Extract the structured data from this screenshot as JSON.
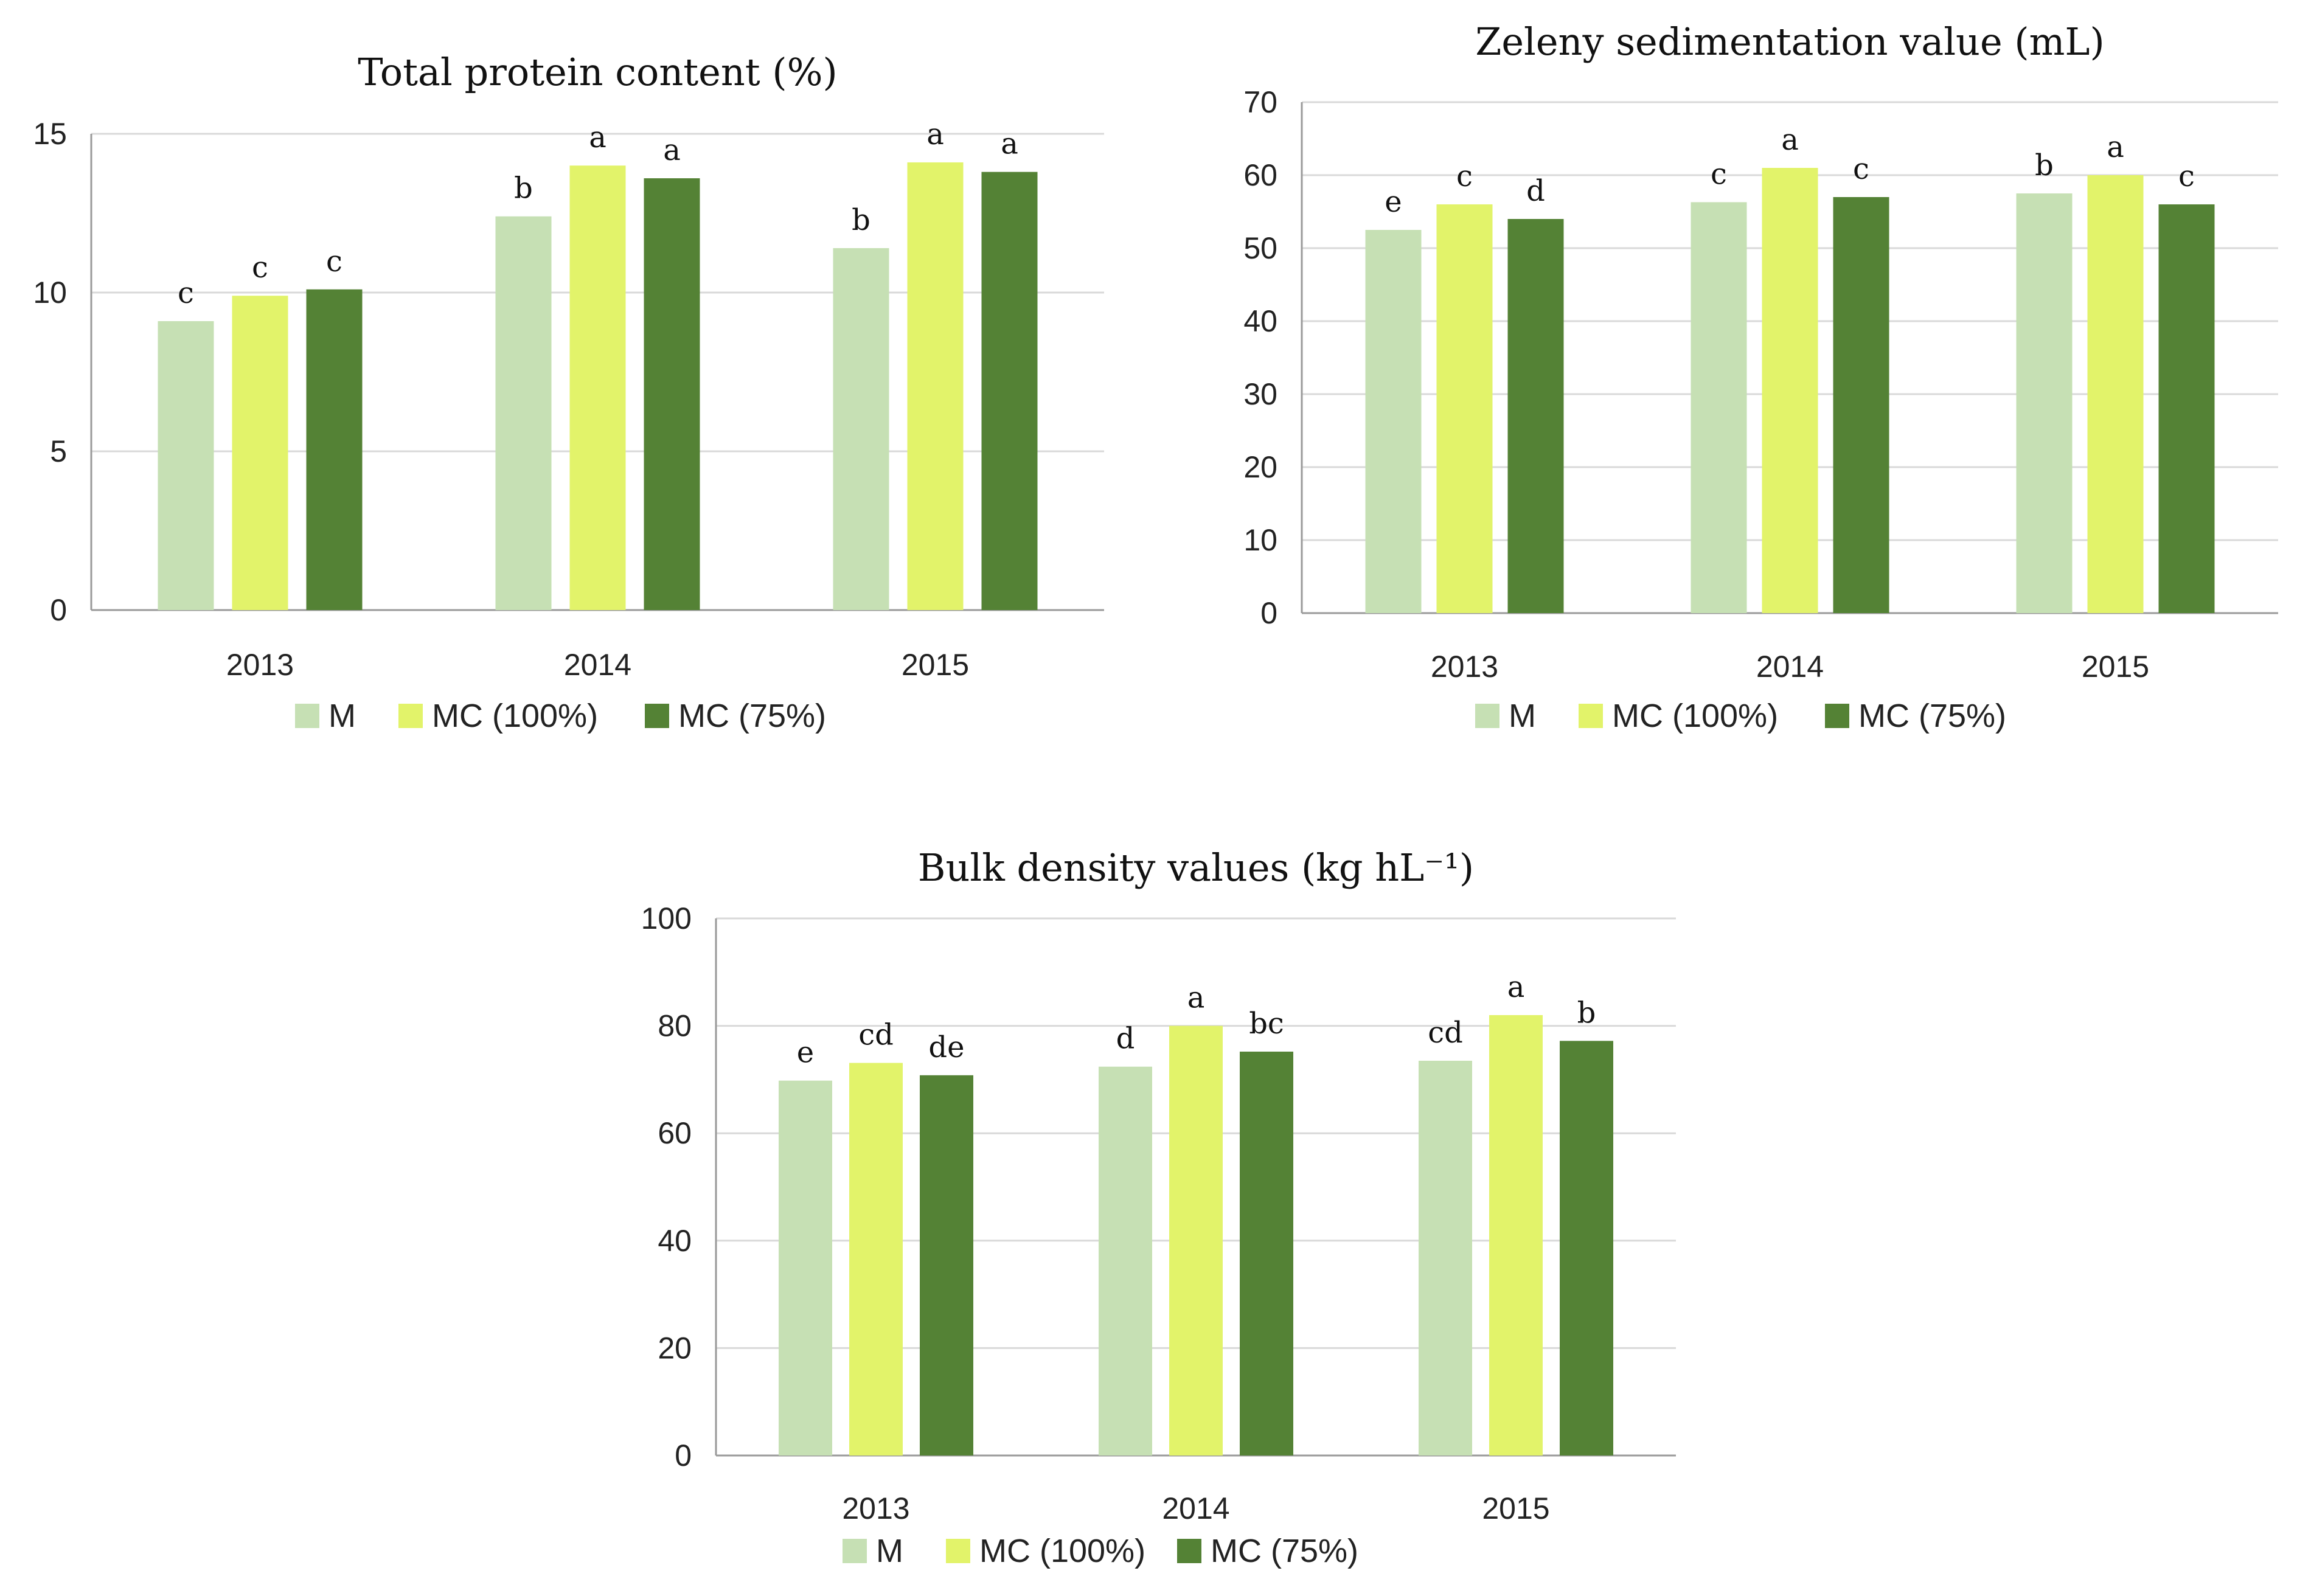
{
  "colors": {
    "M": "#c6e0b4",
    "MC (100%)": "#e2f36a",
    "MC (75%)": "#548235"
  },
  "chart_data": [
    {
      "type": "bar",
      "title": "Total protein content (%)",
      "categories": [
        "2013",
        "2014",
        "2015"
      ],
      "ylim": [
        0,
        15
      ],
      "yticks": [
        0,
        5,
        10,
        15
      ],
      "grid": true,
      "legend_position": "bottom",
      "series": [
        {
          "name": "M",
          "values": [
            9.1,
            12.4,
            11.4
          ],
          "labels": [
            "c",
            "b",
            "b"
          ]
        },
        {
          "name": "MC (100%)",
          "values": [
            9.9,
            14.0,
            14.1
          ],
          "labels": [
            "c",
            "a",
            "a"
          ]
        },
        {
          "name": "MC (75%)",
          "values": [
            10.1,
            13.6,
            13.8
          ],
          "labels": [
            "c",
            "a",
            "a"
          ]
        }
      ]
    },
    {
      "type": "bar",
      "title": "Zeleny sedimentation value (mL)",
      "categories": [
        "2013",
        "2014",
        "2015"
      ],
      "ylim": [
        0,
        70
      ],
      "yticks": [
        0,
        10,
        20,
        30,
        40,
        50,
        60,
        70
      ],
      "grid": true,
      "legend_position": "bottom",
      "series": [
        {
          "name": "M",
          "values": [
            52.5,
            56.3,
            57.5
          ],
          "labels": [
            "e",
            "c",
            "b"
          ]
        },
        {
          "name": "MC (100%)",
          "values": [
            56.0,
            61.0,
            60.0
          ],
          "labels": [
            "c",
            "a",
            "a"
          ]
        },
        {
          "name": "MC (75%)",
          "values": [
            54.0,
            57.0,
            56.0
          ],
          "labels": [
            "d",
            "c",
            "c"
          ]
        }
      ]
    },
    {
      "type": "bar",
      "title": "Bulk density values (kg hL⁻¹)",
      "categories": [
        "2013",
        "2014",
        "2015"
      ],
      "ylim": [
        0,
        100
      ],
      "yticks": [
        0,
        20,
        40,
        60,
        80,
        100
      ],
      "grid": true,
      "legend_position": "bottom",
      "series": [
        {
          "name": "M",
          "values": [
            69.8,
            72.4,
            73.5
          ],
          "labels": [
            "e",
            "d",
            "cd"
          ]
        },
        {
          "name": "MC (100%)",
          "values": [
            73.1,
            80.0,
            82.0
          ],
          "labels": [
            "cd",
            "a",
            "a"
          ]
        },
        {
          "name": "MC (75%)",
          "values": [
            70.8,
            75.2,
            77.2
          ],
          "labels": [
            "de",
            "bc",
            "b"
          ]
        }
      ]
    }
  ]
}
